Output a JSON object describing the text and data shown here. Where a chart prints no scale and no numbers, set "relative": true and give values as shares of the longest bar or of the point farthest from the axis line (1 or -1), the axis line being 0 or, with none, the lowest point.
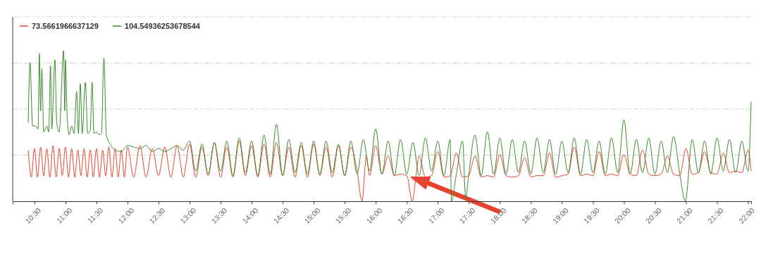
{
  "chart_data": {
    "type": "line",
    "relative": true,
    "grid": "y",
    "legend": "top left",
    "line_style": "solid",
    "marker": "none",
    "xlim": [
      10.15,
      22.05
    ],
    "xticks": [
      {
        "value": 10.5,
        "label": "10:30"
      },
      {
        "value": 11,
        "label": "11:00"
      },
      {
        "value": 11.5,
        "label": "11:30"
      },
      {
        "value": 12,
        "label": "12:00"
      },
      {
        "value": 12.5,
        "label": "12:30"
      },
      {
        "value": 13,
        "label": "13:00"
      },
      {
        "value": 13.5,
        "label": "13:30"
      },
      {
        "value": 14,
        "label": "14:00"
      },
      {
        "value": 14.5,
        "label": "14:30"
      },
      {
        "value": 15,
        "label": "15:00"
      },
      {
        "value": 15.5,
        "label": "15:30"
      },
      {
        "value": 16,
        "label": "16:00"
      },
      {
        "value": 16.5,
        "label": "16:30"
      },
      {
        "value": 17,
        "label": "17:00"
      },
      {
        "value": 17.5,
        "label": "17:30"
      },
      {
        "value": 18,
        "label": "18:00"
      },
      {
        "value": 18.5,
        "label": "18:30"
      },
      {
        "value": 19,
        "label": "19:00"
      },
      {
        "value": 19.5,
        "label": "19:30"
      },
      {
        "value": 20,
        "label": "20:00"
      },
      {
        "value": 20.5,
        "label": "20:30"
      },
      {
        "value": 21,
        "label": "21:00"
      },
      {
        "value": 21.5,
        "label": "21:30"
      },
      {
        "value": 22,
        "label": "22:00"
      }
    ],
    "series": [
      {
        "name": "73.5661966637129",
        "color": "#e8432e",
        "x": [
          10.4,
          10.45,
          10.5,
          10.55,
          10.6,
          10.65,
          10.7,
          10.75,
          10.8,
          10.85,
          10.9,
          10.95,
          11.0,
          11.05,
          11.1,
          11.15,
          11.2,
          11.25,
          11.3,
          11.35,
          11.4,
          11.45,
          11.5,
          11.55,
          11.6,
          11.65,
          11.7,
          11.75,
          11.8,
          11.85,
          11.9,
          11.95,
          12.0,
          12.1,
          12.2,
          12.3,
          12.4,
          12.5,
          12.6,
          12.7,
          12.8,
          12.9,
          13.0,
          13.1,
          13.2,
          13.3,
          13.4,
          13.5,
          13.6,
          13.7,
          13.8,
          13.9,
          14.0,
          14.1,
          14.2,
          14.3,
          14.4,
          14.5,
          14.6,
          14.7,
          14.8,
          14.9,
          15.0,
          15.1,
          15.2,
          15.3,
          15.4,
          15.5,
          15.6,
          15.7,
          15.78,
          15.85,
          15.9,
          16.0,
          16.1,
          16.2,
          16.3,
          16.4,
          16.5,
          16.59,
          16.65,
          16.7,
          16.8,
          16.9,
          17.0,
          17.1,
          17.2,
          17.3,
          17.4,
          17.5,
          17.6,
          17.7,
          17.8,
          17.9,
          18.0,
          18.1,
          18.2,
          18.3,
          18.4,
          18.5,
          18.6,
          18.7,
          18.8,
          18.9,
          19.0,
          19.1,
          19.2,
          19.3,
          19.4,
          19.5,
          19.6,
          19.7,
          19.8,
          19.9,
          20.0,
          20.1,
          20.2,
          20.3,
          20.4,
          20.5,
          20.6,
          20.7,
          20.8,
          20.9,
          21.0,
          21.1,
          21.2,
          21.3,
          21.4,
          21.5,
          21.6,
          21.7,
          21.8,
          21.9,
          22.0,
          22.05
        ],
        "values": [
          0.34,
          0.16,
          0.35,
          0.16,
          0.36,
          0.17,
          0.35,
          0.16,
          0.37,
          0.16,
          0.35,
          0.17,
          0.36,
          0.16,
          0.35,
          0.16,
          0.34,
          0.17,
          0.35,
          0.16,
          0.34,
          0.16,
          0.35,
          0.16,
          0.34,
          0.17,
          0.36,
          0.16,
          0.35,
          0.16,
          0.34,
          0.16,
          0.36,
          0.16,
          0.37,
          0.16,
          0.35,
          0.17,
          0.36,
          0.16,
          0.37,
          0.16,
          0.38,
          0.16,
          0.36,
          0.17,
          0.39,
          0.16,
          0.36,
          0.16,
          0.4,
          0.17,
          0.37,
          0.16,
          0.38,
          0.16,
          0.39,
          0.17,
          0.36,
          0.16,
          0.37,
          0.16,
          0.38,
          0.17,
          0.36,
          0.16,
          0.37,
          0.17,
          0.36,
          0.2,
          0.0,
          0.3,
          0.17,
          0.37,
          0.18,
          0.3,
          0.17,
          0.18,
          0.17,
          0.0,
          0.17,
          0.3,
          0.16,
          0.17,
          0.33,
          0.16,
          0.17,
          0.32,
          0.16,
          0.17,
          0.3,
          0.16,
          0.17,
          0.16,
          0.31,
          0.17,
          0.16,
          0.17,
          0.29,
          0.16,
          0.17,
          0.17,
          0.32,
          0.16,
          0.17,
          0.18,
          0.36,
          0.17,
          0.18,
          0.17,
          0.33,
          0.17,
          0.18,
          0.17,
          0.31,
          0.18,
          0.17,
          0.34,
          0.18,
          0.17,
          0.18,
          0.3,
          0.18,
          0.17,
          0.35,
          0.18,
          0.19,
          0.33,
          0.19,
          0.18,
          0.32,
          0.19,
          0.2,
          0.19,
          0.34,
          0.2
        ]
      },
      {
        "name": "104.54936253678544",
        "color": "#3b8a2c",
        "x": [
          10.4,
          10.43,
          10.47,
          10.52,
          10.56,
          10.58,
          10.6,
          10.62,
          10.65,
          10.7,
          10.73,
          10.76,
          10.78,
          10.83,
          10.86,
          10.9,
          10.97,
          10.99,
          11.0,
          11.03,
          11.06,
          11.1,
          11.14,
          11.18,
          11.21,
          11.24,
          11.27,
          11.32,
          11.36,
          11.4,
          11.43,
          11.46,
          11.5,
          11.55,
          11.58,
          11.62,
          11.66,
          11.72,
          11.8,
          11.9,
          12.0,
          12.1,
          12.2,
          12.3,
          12.4,
          12.5,
          12.6,
          12.7,
          12.8,
          12.9,
          13.0,
          13.1,
          13.2,
          13.3,
          13.4,
          13.5,
          13.6,
          13.7,
          13.8,
          13.9,
          14.0,
          14.1,
          14.2,
          14.3,
          14.4,
          14.5,
          14.6,
          14.7,
          14.8,
          14.9,
          15.0,
          15.1,
          15.2,
          15.3,
          15.4,
          15.5,
          15.6,
          15.7,
          15.8,
          15.9,
          16.0,
          16.1,
          16.2,
          16.3,
          16.4,
          16.5,
          16.6,
          16.7,
          16.8,
          16.9,
          17.0,
          17.1,
          17.2,
          17.22,
          17.3,
          17.4,
          17.45,
          17.5,
          17.6,
          17.7,
          17.8,
          17.9,
          18.0,
          18.1,
          18.2,
          18.3,
          18.4,
          18.5,
          18.6,
          18.7,
          18.8,
          18.9,
          19.0,
          19.1,
          19.2,
          19.3,
          19.4,
          19.5,
          19.6,
          19.7,
          19.8,
          19.9,
          20.0,
          20.1,
          20.2,
          20.3,
          20.4,
          20.5,
          20.6,
          20.7,
          20.8,
          20.9,
          20.99,
          21.1,
          21.2,
          21.3,
          21.4,
          21.5,
          21.6,
          21.7,
          21.8,
          21.9,
          22.0,
          22.05
        ],
        "values": [
          0.52,
          0.92,
          0.5,
          0.5,
          0.48,
          0.98,
          0.6,
          0.88,
          0.46,
          0.5,
          0.46,
          0.9,
          0.48,
          0.94,
          0.52,
          0.46,
          1.0,
          0.6,
          0.94,
          0.55,
          0.44,
          0.5,
          0.45,
          0.73,
          0.45,
          0.78,
          0.45,
          0.79,
          0.45,
          0.47,
          0.79,
          0.45,
          0.46,
          0.44,
          0.45,
          0.95,
          0.44,
          0.38,
          0.34,
          0.33,
          0.37,
          0.36,
          0.35,
          0.37,
          0.33,
          0.35,
          0.33,
          0.35,
          0.37,
          0.34,
          0.4,
          0.2,
          0.38,
          0.18,
          0.39,
          0.2,
          0.4,
          0.17,
          0.42,
          0.19,
          0.4,
          0.17,
          0.44,
          0.18,
          0.51,
          0.17,
          0.41,
          0.19,
          0.39,
          0.18,
          0.4,
          0.18,
          0.4,
          0.19,
          0.38,
          0.17,
          0.4,
          0.18,
          0.41,
          0.2,
          0.48,
          0.18,
          0.4,
          0.17,
          0.41,
          0.18,
          0.39,
          0.17,
          0.42,
          0.2,
          0.4,
          0.17,
          0.41,
          0.0,
          0.18,
          0.4,
          0.02,
          0.18,
          0.44,
          0.17,
          0.46,
          0.18,
          0.42,
          0.18,
          0.41,
          0.19,
          0.4,
          0.18,
          0.42,
          0.19,
          0.41,
          0.18,
          0.4,
          0.19,
          0.42,
          0.18,
          0.41,
          0.19,
          0.4,
          0.18,
          0.42,
          0.19,
          0.54,
          0.18,
          0.41,
          0.19,
          0.42,
          0.18,
          0.4,
          0.19,
          0.43,
          0.18,
          0.0,
          0.41,
          0.19,
          0.4,
          0.18,
          0.42,
          0.2,
          0.41,
          0.19,
          0.4,
          0.2,
          0.66
        ]
      }
    ]
  }
}
